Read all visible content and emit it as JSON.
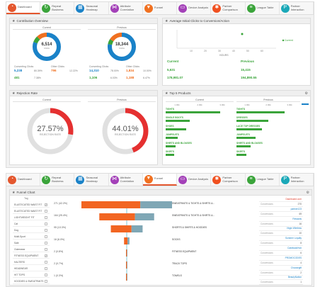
{
  "nav": [
    {
      "label": "Dashboard",
      "icon": "dashboard-icon",
      "color": "#e4572e",
      "glyph": "◔"
    },
    {
      "label": "Repeat Business",
      "icon": "repeat-icon",
      "color": "#3aa43a",
      "glyph": "↻"
    },
    {
      "label": "Seasonal Heatmap",
      "icon": "heatmap-icon",
      "color": "#1a82c8",
      "glyph": "▦"
    },
    {
      "label": "Attribute Correlation",
      "icon": "correlation-icon",
      "color": "#a340b8",
      "glyph": "⋈"
    },
    {
      "label": "Funnel",
      "icon": "funnel-icon",
      "color": "#f07020",
      "glyph": "▼"
    },
    {
      "label": "Device Analysis",
      "icon": "device-icon",
      "color": "#a340b8",
      "glyph": "▭"
    },
    {
      "label": "Partner Comparison",
      "icon": "partner-comparison-icon",
      "color": "#f05020",
      "glyph": "✱"
    },
    {
      "label": "League Table",
      "icon": "league-table-icon",
      "color": "#3aa43a",
      "glyph": "≡"
    },
    {
      "label": "Partner Interaction",
      "icon": "partner-interaction-icon",
      "color": "#1aa8b8",
      "glyph": "P"
    }
  ],
  "contribution": {
    "title": "Contribution Overview",
    "current": "Current",
    "previous": "Previous",
    "current_value": "6,514",
    "previous_value": "18,344",
    "converting_label": "Converting Clicks",
    "other_label": "Other Clicks",
    "current_converting": [
      {
        "value": "5,238",
        "pct": "80.39%"
      },
      {
        "value": "481",
        "pct": "7.38%"
      }
    ],
    "current_other": [
      {
        "value": "796",
        "pct": "12.22%"
      }
    ],
    "previous_converting": [
      {
        "value": "14,310",
        "pct": "78.00%"
      },
      {
        "value": "1,106",
        "pct": "6.03%"
      }
    ],
    "previous_other": [
      {
        "value": "1,834",
        "pct": "10.00%"
      },
      {
        "value": "1,188",
        "pct": "6.47%"
      }
    ]
  },
  "avg_clicks": {
    "title": "Average Initial Clicks to Conversion/Action",
    "legend": "Current",
    "xlabel": "HOURS",
    "current_label": "Current",
    "previous_label": "Previous",
    "rows": [
      {
        "cur": "5,631",
        "prev": "15,415"
      },
      {
        "cur": "178,981.07",
        "prev": "194,890.55"
      }
    ],
    "chart_data": {
      "type": "scatter",
      "x_ticks": [
        "10",
        "20",
        "30",
        "40",
        "50",
        "60"
      ],
      "series": [
        {
          "name": "Current",
          "x": [
            46
          ],
          "y": [
            1
          ]
        }
      ]
    }
  },
  "rejection": {
    "title": "Rejection Rate",
    "current": "Current",
    "previous": "Previous",
    "current_rate": "27.57%",
    "previous_rate": "44.01%",
    "label": "REJECTION RATE",
    "chart_data": {
      "type": "pie",
      "current": 27.57,
      "previous": 44.01
    }
  },
  "top5": {
    "title": "Top 5 Products",
    "current": "Current",
    "previous": "Previous",
    "ticks_current": [
      "1.00k",
      "2.00k",
      "3.00k"
    ],
    "ticks_previous": [
      "1.00k",
      "2.00k",
      "3.00k"
    ],
    "current_items": [
      {
        "name": "TIGHTS",
        "value": 0.8
      },
      {
        "name": "SINGLE BOOTS",
        "value": 0.35
      },
      {
        "name": "SHOES",
        "value": 0.3
      },
      {
        "name": "JUMPSUITS",
        "value": 0.18
      },
      {
        "name": "SHIRTS AND BLOUSES",
        "value": 0.15
      },
      {
        "name": "SKIRTS",
        "value": 0.12
      }
    ],
    "previous_items": [
      {
        "name": "TIGHTS",
        "value": 0.75
      },
      {
        "name": "DRESSES",
        "value": 0.5
      },
      {
        "name": "LACE TOP DRESSES",
        "value": 0.4
      },
      {
        "name": "JUMPSUITS",
        "value": 0.3
      },
      {
        "name": "SHIRTS AND BLOUSES",
        "value": 0.22
      },
      {
        "name": "SKIRTS",
        "value": 0.16
      }
    ]
  },
  "funnel": {
    "title": "Funnel Chart",
    "tag_header": "Tag",
    "tags": [
      {
        "name": "ELASTICATED WAIST FIT",
        "checked": true
      },
      {
        "name": "ELASTICATED WAIST FIT",
        "checked": false
      },
      {
        "name": "LIGHTWEIGHT FIT",
        "checked": false
      },
      {
        "name": "Cat",
        "checked": false
      },
      {
        "name": "Dog",
        "checked": false
      },
      {
        "name": "Multi-Sport",
        "checked": false
      },
      {
        "name": "Sale",
        "checked": false
      },
      {
        "name": "Outerwear",
        "checked": false
      },
      {
        "name": "FITNESS EQUIPMENT",
        "checked": true
      },
      {
        "name": "HALTERS",
        "checked": false
      },
      {
        "name": "HEADWEAR",
        "checked": false
      },
      {
        "name": "HIT TOPS",
        "checked": false
      },
      {
        "name": "HOODIES & SWEATPANTS",
        "checked": false
      }
    ],
    "stages": [
      {
        "pct": "271 (42.2%)",
        "label": "SWEATPANTS & TIGHTS & SHIRTS &...",
        "value": 271
      },
      {
        "pct": "164 (25.4%)",
        "label": "SWEATPANTS & TIGHTS & SHIRTS &...",
        "value": 164
      },
      {
        "pct": "95 (13.3%)",
        "label": "SHORTS & SHIRTS & HOODIES",
        "value": 95
      },
      {
        "pct": "16 (6.0%)",
        "label": "SOCKS",
        "value": 16
      },
      {
        "pct": "2 (0.8%)",
        "label": "FITNESS EQUIPMENT",
        "value": 2
      },
      {
        "pct": "2 (0.7%)",
        "label": "TRACK TOPS",
        "value": 2
      },
      {
        "pct": "1 (0.3%)",
        "label": "TOWELS",
        "value": 1
      }
    ],
    "right_list": [
      {
        "label": "",
        "name": "Dashboard.com",
        "value": "",
        "red": true
      },
      {
        "label": "Conversions",
        "name": "",
        "value": "270",
        "red": false
      },
      {
        "label": "",
        "name": "partner123",
        "value": "",
        "red": false
      },
      {
        "label": "Conversions",
        "name": "",
        "value": "69",
        "red": false
      },
      {
        "label": "",
        "name": "Rewards",
        "value": "",
        "red": false
      },
      {
        "label": "Conversions",
        "name": "",
        "value": "16",
        "red": false
      },
      {
        "label": "",
        "name": "Virgin Wireless",
        "value": "",
        "red": false
      },
      {
        "label": "Conversions",
        "name": "",
        "value": "10",
        "red": false
      },
      {
        "label": "",
        "name": "Summer Loyalty",
        "value": "",
        "red": false
      },
      {
        "label": "Conversions",
        "name": "",
        "value": "8",
        "red": false
      },
      {
        "label": "",
        "name": "CashbackHub",
        "value": "",
        "red": false
      },
      {
        "label": "Conversions",
        "name": "",
        "value": "6",
        "red": false
      },
      {
        "label": "",
        "name": "PROMOCODES",
        "value": "",
        "red": false
      },
      {
        "label": "Conversions",
        "name": "",
        "value": "4",
        "red": false
      },
      {
        "label": "",
        "name": "Choosegift",
        "value": "",
        "red": false
      },
      {
        "label": "Conversions",
        "name": "",
        "value": "2",
        "red": false
      },
      {
        "label": "",
        "name": "BeautyNation",
        "value": "",
        "red": false
      },
      {
        "label": "Conversions",
        "name": "",
        "value": "1",
        "red": false
      }
    ]
  }
}
